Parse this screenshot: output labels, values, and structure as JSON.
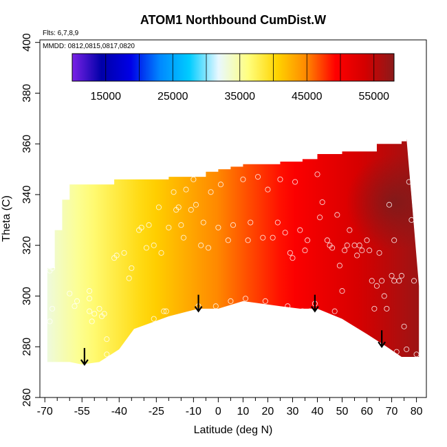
{
  "chart_data": {
    "type": "heatmap",
    "title": "ATOM1 Northbound CumDist.W",
    "xlabel": "Latitude (deg N)",
    "ylabel": "Theta (C)",
    "xlim": [
      -72,
      84
    ],
    "ylim": [
      260,
      401
    ],
    "x_ticks": [
      -70,
      -55,
      -40,
      -25,
      -10,
      0,
      10,
      20,
      30,
      40,
      50,
      60,
      70,
      80
    ],
    "x_minor_ticks": [
      -65,
      -60,
      -50,
      -45,
      -35,
      -30,
      -20,
      -15,
      -5,
      5,
      15,
      25,
      35,
      45,
      55,
      65,
      75
    ],
    "y_ticks": [
      260,
      280,
      300,
      320,
      340,
      360,
      380,
      400
    ],
    "annotations": {
      "flights": "Flts: 6,7,8,9",
      "dates": "MMDD: 0812,0815,0817,0820"
    },
    "colorbar": {
      "range": [
        10000,
        58000
      ],
      "tick_values": [
        15000,
        25000,
        35000,
        45000,
        55000
      ],
      "tick_labels": [
        "15000",
        "25000",
        "35000",
        "45000",
        "55000"
      ],
      "colors": [
        "#7a22e6",
        "#0000a8",
        "#0000e6",
        "#0088ff",
        "#00ccff",
        "#e8f8ff",
        "#ffff80",
        "#ffd400",
        "#ff8800",
        "#ff0000",
        "#d40000",
        "#8b1a1a"
      ]
    },
    "field": {
      "upper_boundary": [
        [
          -69,
          311
        ],
        [
          -66,
          326
        ],
        [
          -63,
          338
        ],
        [
          -60,
          344
        ],
        [
          -45,
          344
        ],
        [
          -42,
          346
        ],
        [
          -20,
          347
        ],
        [
          -5,
          349
        ],
        [
          0,
          350
        ],
        [
          5,
          351
        ],
        [
          10,
          352
        ],
        [
          25,
          353
        ],
        [
          34,
          354
        ],
        [
          40,
          356
        ],
        [
          50,
          357
        ],
        [
          64,
          360
        ],
        [
          74,
          361
        ],
        [
          76,
          362
        ]
      ],
      "lower_boundary": [
        [
          -69,
          274
        ],
        [
          -60,
          274
        ],
        [
          -55,
          273
        ],
        [
          -48,
          274
        ],
        [
          -40,
          279
        ],
        [
          -34,
          287
        ],
        [
          -20,
          292
        ],
        [
          -8,
          295
        ],
        [
          0,
          295
        ],
        [
          10,
          298
        ],
        [
          25,
          296
        ],
        [
          33,
          295
        ],
        [
          40,
          295
        ],
        [
          50,
          291
        ],
        [
          60,
          285
        ],
        [
          68,
          280
        ],
        [
          74,
          276
        ],
        [
          81,
          276
        ],
        [
          81,
          304
        ]
      ],
      "west_value": 33000,
      "east_value": 57000,
      "dark_spot": [
        71,
        337,
        58000
      ]
    },
    "flight_points": [
      [
        -68,
        290
      ],
      [
        -67,
        295
      ],
      [
        -68,
        310
      ],
      [
        -67,
        311
      ],
      [
        -60,
        301
      ],
      [
        -58,
        296
      ],
      [
        -57,
        298
      ],
      [
        -52,
        299
      ],
      [
        -52,
        294
      ],
      [
        -52,
        302
      ],
      [
        -51,
        290
      ],
      [
        -50,
        293
      ],
      [
        -48,
        295
      ],
      [
        -47,
        292
      ],
      [
        -46,
        293
      ],
      [
        -45,
        277
      ],
      [
        -45,
        283
      ],
      [
        -42,
        315
      ],
      [
        -41,
        316
      ],
      [
        -38,
        317
      ],
      [
        -36,
        307
      ],
      [
        -35,
        311
      ],
      [
        -32,
        326
      ],
      [
        -31,
        327
      ],
      [
        -29,
        319
      ],
      [
        -28,
        328
      ],
      [
        -26,
        320
      ],
      [
        -26,
        291
      ],
      [
        -24,
        335
      ],
      [
        -23,
        317
      ],
      [
        -22,
        294
      ],
      [
        -21,
        294
      ],
      [
        -20,
        327
      ],
      [
        -18,
        341
      ],
      [
        -17,
        334
      ],
      [
        -16,
        335
      ],
      [
        -15,
        328
      ],
      [
        -14,
        323
      ],
      [
        -13,
        342
      ],
      [
        -11,
        334
      ],
      [
        -10,
        346
      ],
      [
        -9,
        336
      ],
      [
        -8,
        296
      ],
      [
        -7,
        320
      ],
      [
        -6,
        329
      ],
      [
        -4,
        319
      ],
      [
        -3,
        341
      ],
      [
        -1,
        296
      ],
      [
        0,
        327
      ],
      [
        1,
        344
      ],
      [
        4,
        322
      ],
      [
        5,
        298
      ],
      [
        6,
        328
      ],
      [
        10,
        346
      ],
      [
        11,
        299
      ],
      [
        12,
        322
      ],
      [
        13,
        329
      ],
      [
        16,
        347
      ],
      [
        18,
        323
      ],
      [
        19,
        298
      ],
      [
        20,
        342
      ],
      [
        22,
        323
      ],
      [
        24,
        329
      ],
      [
        25,
        346
      ],
      [
        27,
        325
      ],
      [
        28,
        296
      ],
      [
        29,
        317
      ],
      [
        30,
        315
      ],
      [
        31,
        345
      ],
      [
        33,
        326
      ],
      [
        34,
        294
      ],
      [
        35,
        318
      ],
      [
        36,
        322
      ],
      [
        37,
        294
      ],
      [
        39,
        297
      ],
      [
        40,
        348
      ],
      [
        41,
        331
      ],
      [
        42,
        337
      ],
      [
        44,
        322
      ],
      [
        45,
        320
      ],
      [
        46,
        319
      ],
      [
        47,
        294
      ],
      [
        48,
        332
      ],
      [
        49,
        312
      ],
      [
        50,
        302
      ],
      [
        51,
        318
      ],
      [
        52,
        320
      ],
      [
        53,
        326
      ],
      [
        55,
        320
      ],
      [
        56,
        316
      ],
      [
        57,
        320
      ],
      [
        58,
        318
      ],
      [
        60,
        322
      ],
      [
        61,
        318
      ],
      [
        62,
        306
      ],
      [
        63,
        295
      ],
      [
        64,
        304
      ],
      [
        65,
        317
      ],
      [
        66,
        306
      ],
      [
        67,
        300
      ],
      [
        68,
        295
      ],
      [
        69,
        336
      ],
      [
        70,
        308
      ],
      [
        71,
        306
      ],
      [
        71,
        322
      ],
      [
        72,
        278
      ],
      [
        73,
        306
      ],
      [
        74,
        308
      ],
      [
        75,
        288
      ],
      [
        76,
        279
      ],
      [
        77,
        345
      ],
      [
        78,
        330
      ],
      [
        79,
        306
      ],
      [
        80,
        277
      ]
    ],
    "arrows": [
      {
        "lat": -54,
        "theta": 273
      },
      {
        "lat": -8,
        "theta": 294
      },
      {
        "lat": 39,
        "theta": 294
      },
      {
        "lat": 66,
        "theta": 280
      }
    ]
  }
}
